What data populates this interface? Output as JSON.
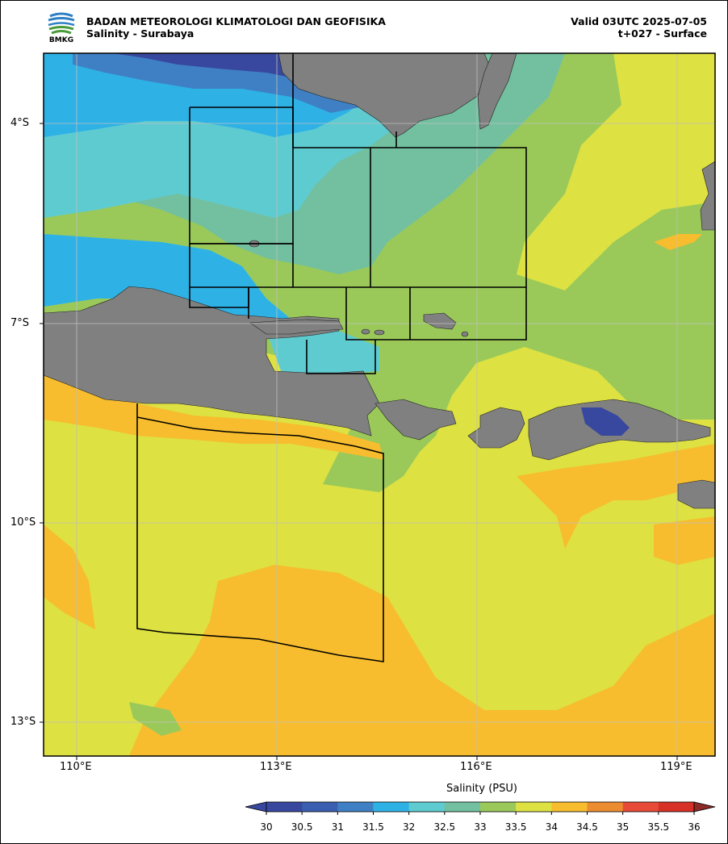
{
  "header": {
    "org_name": "BADAN METEOROLOGI KLIMATOLOGI DAN GEOFISIKA",
    "product": "Salinity - Surabaya",
    "valid": "Valid 03UTC 2025-07-05",
    "level": "t+027 - Surface",
    "logo_text": "BMKG"
  },
  "axes": {
    "lat_labels": [
      "4°S",
      "7°S",
      "10°S",
      "13°S"
    ],
    "lon_labels": [
      "110°E",
      "113°E",
      "116°E",
      "119°E"
    ]
  },
  "colorbar": {
    "title": "Salinity (PSU)",
    "ticks": [
      "30",
      "30.5",
      "31",
      "31.5",
      "32",
      "32.5",
      "33",
      "33.5",
      "34",
      "34.5",
      "35",
      "35.5",
      "36"
    ],
    "colors": [
      "#38489e",
      "#3a5fb0",
      "#3f80c4",
      "#2eb2e6",
      "#5ecbd0",
      "#72c0a0",
      "#9ac95a",
      "#dde142",
      "#f7bd2e",
      "#ec8c30",
      "#e84a38",
      "#d73027",
      "#8c2a26"
    ]
  },
  "colors": {
    "land": "#808080",
    "sea_high": "#dde142",
    "sea_higher": "#f7bd2e",
    "mid": "#9ac95a",
    "low": "#72c0a0",
    "lower": "#5ecbd0",
    "lowest": "#2eb2e6",
    "deep_low": "#38489e"
  }
}
